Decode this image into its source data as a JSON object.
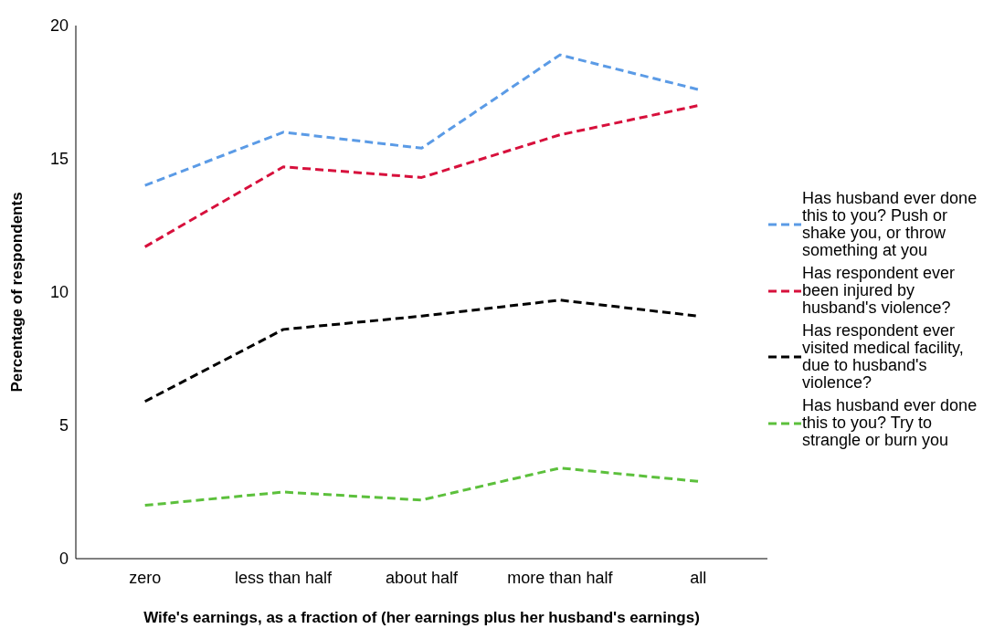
{
  "chart_data": {
    "type": "line",
    "xlabel": "Wife's earnings, as a fraction of (her earnings plus her husband's earnings)",
    "ylabel": "Percentage of respondents",
    "categories": [
      "zero",
      "less than half",
      "about half",
      "more than half",
      "all"
    ],
    "series": [
      {
        "name": "Has husband ever done this to you? Push or shake you, or throw something at you",
        "color": "#5b9be6",
        "values": [
          14.0,
          16.0,
          15.4,
          18.9,
          17.6
        ]
      },
      {
        "name": "Has respondent ever been injured by husband's violence?",
        "color": "#d7103c",
        "values": [
          11.7,
          14.7,
          14.3,
          15.9,
          17.0
        ]
      },
      {
        "name": "Has respondent ever visited medical facility, due to husband's violence?",
        "color": "#000000",
        "values": [
          5.9,
          8.6,
          9.1,
          9.7,
          9.1
        ]
      },
      {
        "name": "Has husband ever done this to you? Try to strangle or burn you",
        "color": "#5cc03c",
        "values": [
          2.0,
          2.5,
          2.2,
          3.4,
          2.9
        ]
      }
    ],
    "ylim": [
      0,
      20
    ],
    "yticks": [
      0,
      5,
      10,
      15,
      20
    ],
    "grid": false,
    "legend": "right",
    "marker": "none",
    "line_style": "dashed"
  }
}
